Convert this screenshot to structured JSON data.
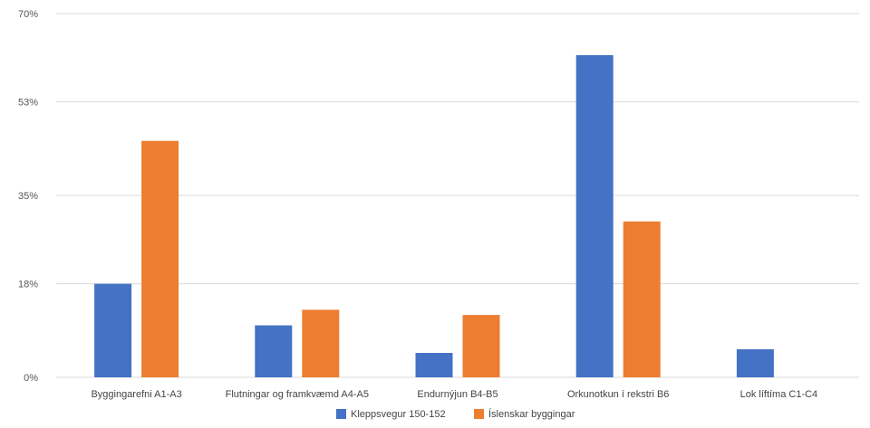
{
  "chart_data": {
    "type": "bar",
    "title": "",
    "xlabel": "",
    "ylabel": "",
    "categories": [
      "Byggingarefni A1-A3",
      "Flutningar og framkvæmd A4-A5",
      "Endurnýjun B4-B5",
      "Orkunotkun í rekstri B6",
      "Lok líftíma C1-C4"
    ],
    "series": [
      {
        "name": "Kleppsvegur 150-152",
        "color": "#4472c4",
        "values": [
          18.0,
          10.0,
          4.7,
          62.0,
          5.4
        ]
      },
      {
        "name": "Íslenskar byggingar",
        "color": "#ed7d31",
        "values": [
          45.5,
          13.0,
          12.0,
          30.0,
          0
        ]
      }
    ],
    "yticks": [
      0,
      18,
      35,
      53,
      70
    ],
    "ytick_labels": [
      "0%",
      "18%",
      "35%",
      "53%",
      "70%"
    ],
    "ylim": [
      0,
      70
    ],
    "grid": true,
    "legend_position": "bottom"
  }
}
